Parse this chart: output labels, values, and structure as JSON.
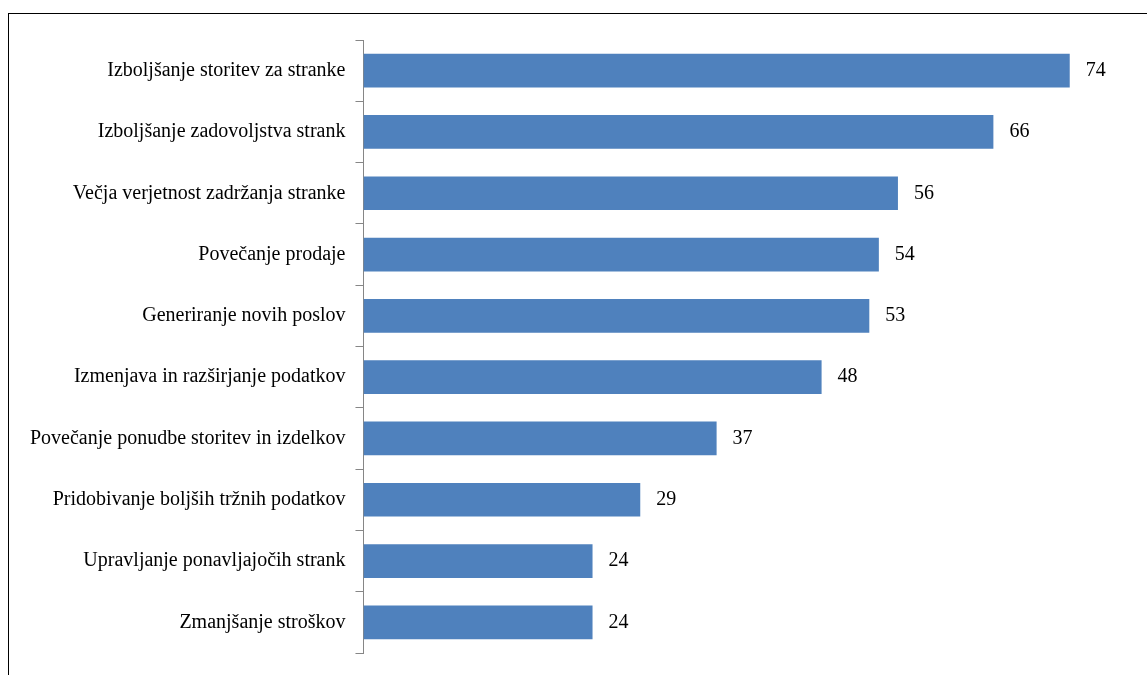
{
  "chart_data": {
    "type": "bar",
    "orientation": "horizontal",
    "categories": [
      "Izboljšanje storitev za stranke",
      "Izboljšanje zadovoljstva strank",
      "Večja verjetnost zadržanja stranke",
      "Povečanje prodaje",
      "Generiranje novih poslov",
      "Izmenjava in razširjanje podatkov",
      "Povečanje ponudbe storitev in izdelkov",
      "Pridobivanje boljših tržnih podatkov",
      "Upravljanje ponavljajočih strank",
      "Zmanjšanje stroškov"
    ],
    "values": [
      74,
      66,
      56,
      54,
      53,
      48,
      37,
      29,
      24,
      24
    ],
    "color": "#4f81bd",
    "data_labels": true,
    "grid": false,
    "legend": false,
    "tick_labels": "y"
  }
}
